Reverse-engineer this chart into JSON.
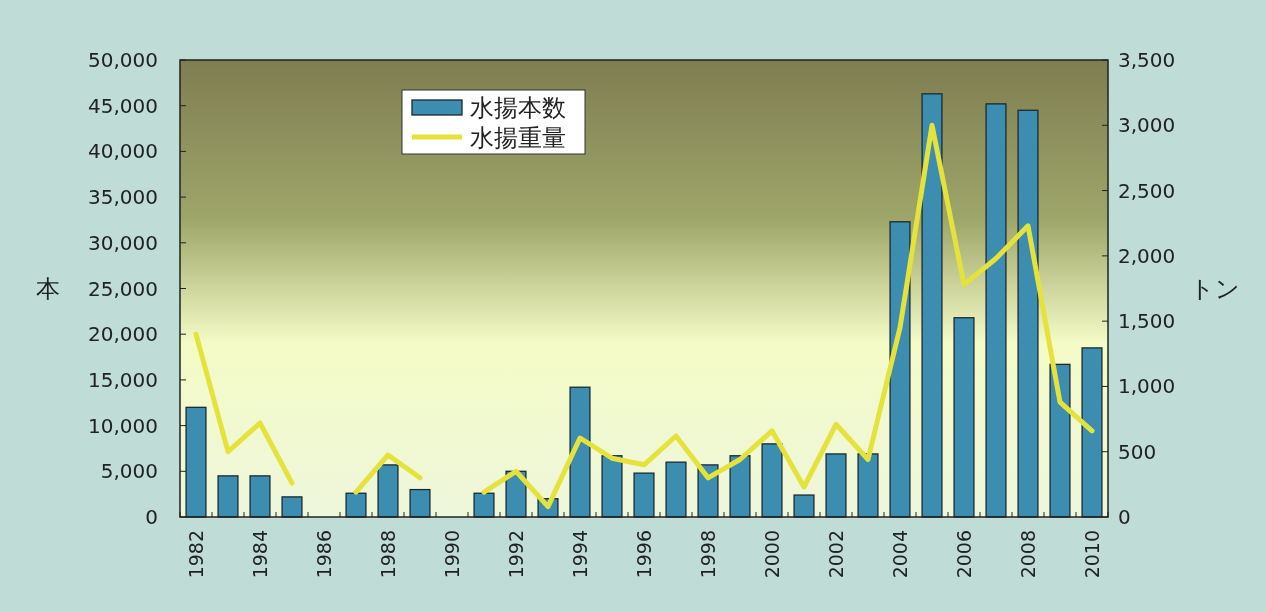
{
  "chart_data": {
    "type": "bar",
    "categories": [
      "1982",
      null,
      "1984",
      null,
      "1986",
      null,
      "1988",
      null,
      "1990",
      null,
      "1992",
      null,
      "1994",
      null,
      "1996",
      null,
      "1998",
      null,
      "2000",
      null,
      "2002",
      null,
      "2004",
      null,
      "2006",
      null,
      "2008",
      null,
      "2010"
    ],
    "series": [
      {
        "name": "水揚本数",
        "color": "#3d8db0",
        "values": [
          12000,
          4500,
          4500,
          2200,
          null,
          2600,
          5700,
          3000,
          null,
          2600,
          5000,
          2000,
          14200,
          6700,
          4800,
          6000,
          5700,
          6700,
          8000,
          2400,
          6900,
          6900,
          32300,
          46300,
          21800,
          45200,
          44500,
          16700,
          18500
        ]
      },
      {
        "name": "水揚重量",
        "type": "line",
        "axis": "y2",
        "color": "#e6e23c",
        "values": [
          1400,
          500,
          720,
          260,
          null,
          190,
          475,
          300,
          null,
          190,
          350,
          80,
          605,
          450,
          400,
          620,
          300,
          440,
          660,
          230,
          710,
          440,
          1450,
          3000,
          1780,
          1980,
          2230,
          880,
          660
        ]
      }
    ],
    "ylabel": "本",
    "y2label": "トン",
    "ylim": [
      0,
      50000
    ],
    "yticks": [
      0,
      {
        "value": 5000,
        "label": "5,000"
      },
      {
        "value": 10000,
        "label": "10,000"
      },
      {
        "value": 15000,
        "label": "15,000"
      },
      {
        "value": 20000,
        "label": "20,000"
      },
      {
        "value": 25000,
        "label": "25,000"
      },
      {
        "value": 30000,
        "label": "30,000"
      },
      {
        "value": 35000,
        "label": "35,000"
      },
      {
        "value": 40000,
        "label": "40,000"
      },
      {
        "value": 45000,
        "label": "45,000"
      },
      {
        "value": 50000,
        "label": "50,000"
      }
    ],
    "y2lim": [
      0,
      3500
    ],
    "y2ticks": [
      0,
      500,
      {
        "value": 1000,
        "label": "1,000"
      },
      {
        "value": 1500,
        "label": "1,500"
      },
      {
        "value": 2000,
        "label": "2,000"
      },
      {
        "value": 2500,
        "label": "2,500"
      },
      {
        "value": 3000,
        "label": "3,000"
      },
      {
        "value": 3500,
        "label": "3,500"
      }
    ],
    "legend": "top left"
  }
}
